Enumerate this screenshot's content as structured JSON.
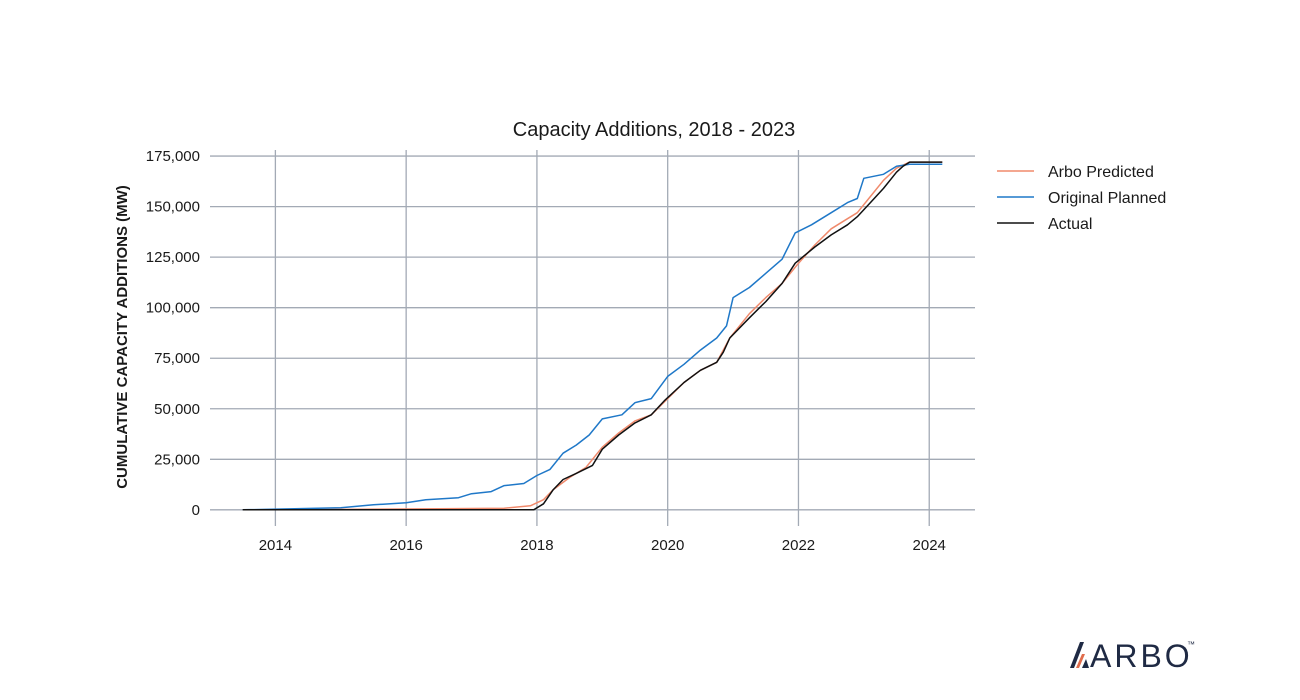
{
  "chart_data": {
    "type": "line",
    "title": "Capacity Additions, 2018 - 2023",
    "xlabel": "",
    "ylabel": "CUMULATIVE CAPACITY ADDITIONS (MW)",
    "xlim": [
      2013.0,
      2024.7
    ],
    "ylim": [
      -8000,
      178000
    ],
    "x_ticks": [
      2014,
      2016,
      2018,
      2020,
      2022,
      2024
    ],
    "x_tick_labels": [
      "2014",
      "2016",
      "2018",
      "2020",
      "2022",
      "2024"
    ],
    "y_ticks": [
      0,
      25000,
      50000,
      75000,
      100000,
      125000,
      150000,
      175000
    ],
    "y_tick_labels": [
      "0",
      "25,000",
      "50,000",
      "75,000",
      "100,000",
      "125,000",
      "150,000",
      "175,000"
    ],
    "grid": true,
    "legend_position": "right",
    "series": [
      {
        "name": "Arbo Predicted",
        "color": "#f08a6c",
        "x": [
          2013.5,
          2015.0,
          2016.5,
          2017.5,
          2017.9,
          2018.1,
          2018.25,
          2018.5,
          2018.75,
          2019.0,
          2019.25,
          2019.5,
          2019.75,
          2020.0,
          2020.25,
          2020.5,
          2020.75,
          2020.95,
          2021.25,
          2021.5,
          2021.75,
          2022.0,
          2022.25,
          2022.5,
          2022.75,
          2022.9,
          2023.1,
          2023.3,
          2023.5,
          2023.7,
          2024.2
        ],
        "values": [
          0,
          200,
          500,
          800,
          2000,
          5000,
          10000,
          16000,
          21000,
          31000,
          38000,
          44000,
          47000,
          55000,
          63000,
          69000,
          73000,
          85000,
          97000,
          105000,
          112000,
          122000,
          131000,
          139000,
          144000,
          147000,
          155000,
          163000,
          169000,
          172000,
          172000
        ]
      },
      {
        "name": "Original Planned",
        "color": "#1f78c8",
        "x": [
          2013.5,
          2015.0,
          2015.5,
          2016.0,
          2016.3,
          2016.8,
          2017.0,
          2017.3,
          2017.5,
          2017.8,
          2018.0,
          2018.2,
          2018.4,
          2018.6,
          2018.8,
          2019.0,
          2019.3,
          2019.5,
          2019.75,
          2020.0,
          2020.25,
          2020.5,
          2020.75,
          2020.9,
          2021.0,
          2021.25,
          2021.5,
          2021.75,
          2021.95,
          2022.2,
          2022.5,
          2022.75,
          2022.9,
          2023.0,
          2023.3,
          2023.5,
          2023.7,
          2024.2
        ],
        "values": [
          0,
          1000,
          2500,
          3500,
          5000,
          6000,
          8000,
          9000,
          12000,
          13000,
          17000,
          20000,
          28000,
          32000,
          37000,
          45000,
          47000,
          53000,
          55000,
          66000,
          72000,
          79000,
          85000,
          91000,
          105000,
          110000,
          117000,
          124000,
          137000,
          141000,
          147000,
          152000,
          154000,
          164000,
          166000,
          170000,
          171000,
          171000
        ]
      },
      {
        "name": "Actual",
        "color": "#111111",
        "x": [
          2013.5,
          2016.5,
          2017.95,
          2018.1,
          2018.25,
          2018.4,
          2018.6,
          2018.85,
          2019.0,
          2019.25,
          2019.5,
          2019.75,
          2019.95,
          2020.25,
          2020.5,
          2020.75,
          2020.85,
          2020.95,
          2021.25,
          2021.5,
          2021.75,
          2021.95,
          2022.25,
          2022.5,
          2022.75,
          2022.9,
          2023.1,
          2023.3,
          2023.5,
          2023.6,
          2023.7,
          2024.2
        ],
        "values": [
          0,
          0,
          0,
          3000,
          10000,
          15000,
          18000,
          22000,
          30000,
          37000,
          43000,
          47000,
          54000,
          63000,
          69000,
          73000,
          78000,
          85000,
          95000,
          103000,
          112000,
          122000,
          130000,
          136000,
          141000,
          145000,
          152000,
          159000,
          167000,
          170000,
          172000,
          172000
        ]
      }
    ]
  },
  "brand": {
    "logo_text": "ARBO",
    "trademark": "™",
    "logo_color": "#1f2a44",
    "logo_accent": "#e06c4b"
  }
}
